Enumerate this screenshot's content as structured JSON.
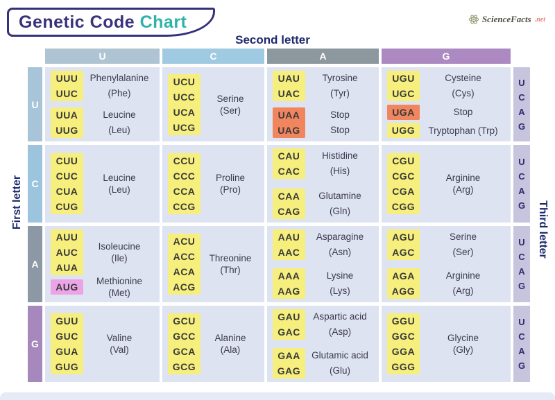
{
  "title": {
    "part1": "Genetic Code ",
    "part2": "Chart"
  },
  "logo": {
    "name": "ScienceFacts",
    "suffix": ".net"
  },
  "labels": {
    "second": "Second letter",
    "first": "First letter",
    "third": "Third letter"
  },
  "colors": {
    "navy": "#1c2a6d",
    "title_navy": "#39337c",
    "title_teal": "#2fb3a9",
    "cell_bg": "#dee3f1",
    "third_strip": "#c7c4de",
    "highlights": {
      "yellow": "#f6ef7d",
      "orange": "#f0855e",
      "pink": "#eba4e6"
    }
  },
  "column_headers": [
    {
      "letter": "U",
      "color": "#afc4d3"
    },
    {
      "letter": "C",
      "color": "#a0cae2"
    },
    {
      "letter": "A",
      "color": "#8d979e"
    },
    {
      "letter": "G",
      "color": "#ad89c2"
    }
  ],
  "third_letters": [
    "U",
    "C",
    "A",
    "G"
  ],
  "rows": [
    {
      "letter": "U",
      "color": "#a7c4d8",
      "cells": [
        {
          "groups": [
            {
              "codons": [
                "UUU",
                "UUC"
              ],
              "highlight": "yellow",
              "label_lines": [
                "Phenylalanine",
                "(Phe)"
              ]
            },
            {
              "codons": [
                "UUA",
                "UUG"
              ],
              "highlight": "yellow",
              "label_lines": [
                "Leucine",
                "(Leu)"
              ]
            }
          ]
        },
        {
          "groups": [
            {
              "codons": [
                "UCU",
                "UCC",
                "UCA",
                "UCG"
              ],
              "highlight": "yellow",
              "label_lines": [
                "Serine",
                "(Ser)"
              ]
            }
          ]
        },
        {
          "groups": [
            {
              "codons": [
                "UAU",
                "UAC"
              ],
              "highlight": "yellow",
              "label_lines": [
                "Tyrosine",
                "(Tyr)"
              ]
            },
            {
              "codons": [
                "UAA",
                "UAG"
              ],
              "highlight": "orange",
              "label_lines": [
                "Stop",
                "Stop"
              ]
            }
          ]
        },
        {
          "groups": [
            {
              "codons": [
                "UGU",
                "UGC"
              ],
              "highlight": "yellow",
              "label_lines": [
                "Cysteine",
                "(Cys)"
              ]
            },
            {
              "codons": [
                "UGA"
              ],
              "highlight": "orange",
              "label_lines": [
                "Stop"
              ]
            },
            {
              "codons": [
                "UGG"
              ],
              "highlight": "yellow",
              "label_lines": [
                "Tryptophan (Trp)"
              ]
            }
          ]
        }
      ]
    },
    {
      "letter": "C",
      "color": "#9cc4dd",
      "cells": [
        {
          "groups": [
            {
              "codons": [
                "CUU",
                "CUC",
                "CUA",
                "CUG"
              ],
              "highlight": "yellow",
              "label_lines": [
                "Leucine",
                "(Leu)"
              ]
            }
          ]
        },
        {
          "groups": [
            {
              "codons": [
                "CCU",
                "CCC",
                "CCA",
                "CCG"
              ],
              "highlight": "yellow",
              "label_lines": [
                "Proline",
                "(Pro)"
              ]
            }
          ]
        },
        {
          "groups": [
            {
              "codons": [
                "CAU",
                "CAC"
              ],
              "highlight": "yellow",
              "label_lines": [
                "Histidine",
                "(His)"
              ]
            },
            {
              "codons": [
                "CAA",
                "CAG"
              ],
              "highlight": "yellow",
              "label_lines": [
                "Glutamine",
                "(Gln)"
              ]
            }
          ]
        },
        {
          "groups": [
            {
              "codons": [
                "CGU",
                "CGC",
                "CGA",
                "CGG"
              ],
              "highlight": "yellow",
              "label_lines": [
                "Arginine",
                "(Arg)"
              ]
            }
          ]
        }
      ]
    },
    {
      "letter": "A",
      "color": "#8c98a3",
      "cells": [
        {
          "groups": [
            {
              "codons": [
                "AUU",
                "AUC",
                "AUA"
              ],
              "highlight": "yellow",
              "label_lines": [
                "Isoleucine",
                "(Ile)"
              ]
            },
            {
              "codons": [
                "AUG"
              ],
              "highlight": "pink",
              "label_lines": [
                "Methionine",
                "(Met)"
              ]
            }
          ]
        },
        {
          "groups": [
            {
              "codons": [
                "ACU",
                "ACC",
                "ACA",
                "ACG"
              ],
              "highlight": "yellow",
              "label_lines": [
                "Threonine",
                "(Thr)"
              ]
            }
          ]
        },
        {
          "groups": [
            {
              "codons": [
                "AAU",
                "AAC"
              ],
              "highlight": "yellow",
              "label_lines": [
                "Asparagine",
                "(Asn)"
              ]
            },
            {
              "codons": [
                "AAA",
                "AAG"
              ],
              "highlight": "yellow",
              "label_lines": [
                "Lysine",
                "(Lys)"
              ]
            }
          ]
        },
        {
          "groups": [
            {
              "codons": [
                "AGU",
                "AGC"
              ],
              "highlight": "yellow",
              "label_lines": [
                "Serine",
                "(Ser)"
              ]
            },
            {
              "codons": [
                "AGA",
                "AGG"
              ],
              "highlight": "yellow",
              "label_lines": [
                "Arginine",
                "(Arg)"
              ]
            }
          ]
        }
      ]
    },
    {
      "letter": "G",
      "color": "#a788bc",
      "cells": [
        {
          "groups": [
            {
              "codons": [
                "GUU",
                "GUC",
                "GUA",
                "GUG"
              ],
              "highlight": "yellow",
              "label_lines": [
                "Valine",
                "(Val)"
              ]
            }
          ]
        },
        {
          "groups": [
            {
              "codons": [
                "GCU",
                "GCC",
                "GCA",
                "GCG"
              ],
              "highlight": "yellow",
              "label_lines": [
                "Alanine",
                "(Ala)"
              ]
            }
          ]
        },
        {
          "groups": [
            {
              "codons": [
                "GAU",
                "GAC"
              ],
              "highlight": "yellow",
              "label_lines": [
                "Aspartic acid",
                "(Asp)"
              ]
            },
            {
              "codons": [
                "GAA",
                "GAG"
              ],
              "highlight": "yellow",
              "label_lines": [
                "Glutamic acid",
                "(Glu)"
              ]
            }
          ]
        },
        {
          "groups": [
            {
              "codons": [
                "GGU",
                "GGC",
                "GGA",
                "GGG"
              ],
              "highlight": "yellow",
              "label_lines": [
                "Glycine",
                "(Gly)"
              ]
            }
          ]
        }
      ]
    }
  ]
}
